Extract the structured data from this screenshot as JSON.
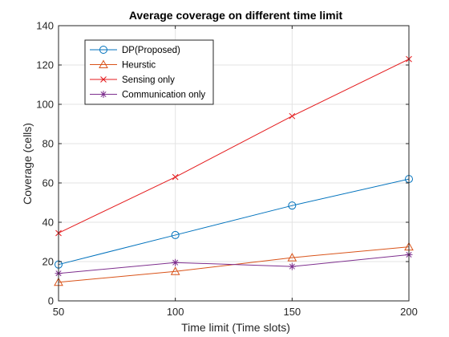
{
  "chart_data": {
    "type": "line",
    "title": "Average coverage on different time limit",
    "xlabel": "Time limit (Time slots)",
    "ylabel": "Coverage (cells)",
    "x": [
      50,
      100,
      150,
      200
    ],
    "xlim": [
      50,
      200
    ],
    "ylim": [
      0,
      140
    ],
    "xticks": [
      50,
      100,
      150,
      200
    ],
    "yticks": [
      0,
      20,
      40,
      60,
      80,
      100,
      120,
      140
    ],
    "grid": true,
    "legend_position": "top-left",
    "series": [
      {
        "name": "DP(Proposed)",
        "color": "#0072BD",
        "marker": "circle",
        "values": [
          18.5,
          33.5,
          48.5,
          62
        ]
      },
      {
        "name": "Heurstic",
        "color": "#D95319",
        "marker": "triangle",
        "values": [
          9.5,
          15,
          22,
          27.5
        ]
      },
      {
        "name": "Sensing only",
        "color": "#E41A1C",
        "marker": "x",
        "values": [
          34.5,
          63,
          94,
          123
        ]
      },
      {
        "name": "Communication only",
        "color": "#7E2F8E",
        "marker": "star",
        "values": [
          14,
          19.5,
          17.5,
          23.5
        ]
      }
    ]
  }
}
